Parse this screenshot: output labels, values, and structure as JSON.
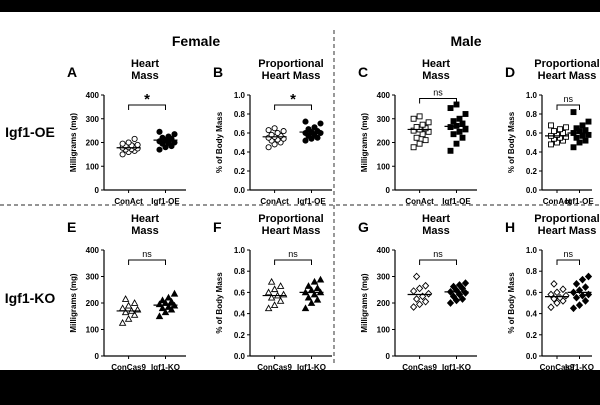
{
  "section_titles": {
    "female": "Female",
    "male": "Male"
  },
  "row_labels": {
    "oe": "Igf1-OE",
    "ko": "Igf1-KO"
  },
  "colors": {
    "background": "#ffffff",
    "frame": "#000000",
    "divider": "#555555",
    "ink": "#000000"
  },
  "chart_data": [
    {
      "type": "scatter",
      "letter": "A",
      "title": [
        "Heart",
        "Mass"
      ],
      "ylabel": "Milligrams (mg)",
      "ylim": [
        0,
        400
      ],
      "yticks": [
        0,
        100,
        200,
        300,
        400
      ],
      "categories": [
        "ConAct",
        "Igf1-OE"
      ],
      "markers": [
        "circle-open",
        "circle-filled"
      ],
      "significance": "*",
      "series": [
        {
          "values": [
            150,
            160,
            165,
            170,
            172,
            175,
            178,
            180,
            182,
            185,
            188,
            190,
            195,
            200,
            215
          ]
        },
        {
          "values": [
            170,
            180,
            185,
            195,
            198,
            200,
            205,
            210,
            215,
            220,
            225,
            235,
            245
          ]
        }
      ],
      "means": [
        178,
        210
      ]
    },
    {
      "type": "scatter",
      "letter": "B",
      "title": [
        "Proportional",
        "Heart Mass"
      ],
      "ylabel": "% of Body Mass",
      "ylim": [
        0,
        1.0
      ],
      "yticks": [
        0.0,
        0.2,
        0.4,
        0.6,
        0.8,
        1.0
      ],
      "categories": [
        "ConAct",
        "Igf1-OE"
      ],
      "markers": [
        "circle-open",
        "circle-filled"
      ],
      "significance": "*",
      "series": [
        {
          "values": [
            0.45,
            0.48,
            0.5,
            0.52,
            0.53,
            0.54,
            0.55,
            0.56,
            0.57,
            0.58,
            0.6,
            0.62,
            0.63,
            0.65
          ]
        },
        {
          "values": [
            0.52,
            0.54,
            0.55,
            0.57,
            0.58,
            0.6,
            0.6,
            0.61,
            0.62,
            0.64,
            0.66,
            0.7,
            0.72
          ]
        }
      ],
      "means": [
        0.56,
        0.61
      ]
    },
    {
      "type": "scatter",
      "letter": "C",
      "title": [
        "Heart",
        "Mass"
      ],
      "ylabel": "Milligrams (mg)",
      "ylim": [
        0,
        400
      ],
      "yticks": [
        0,
        100,
        200,
        300,
        400
      ],
      "categories": [
        "ConAct",
        "Igf1-OE"
      ],
      "markers": [
        "square-open",
        "square-filled"
      ],
      "significance": "ns",
      "series": [
        {
          "values": [
            180,
            195,
            210,
            220,
            235,
            245,
            250,
            255,
            260,
            265,
            275,
            285,
            300,
            310
          ]
        },
        {
          "values": [
            165,
            195,
            220,
            235,
            245,
            255,
            265,
            270,
            280,
            290,
            300,
            320,
            345,
            360
          ]
        }
      ],
      "means": [
        255,
        268
      ]
    },
    {
      "type": "scatter",
      "letter": "D",
      "title": [
        "Proportional",
        "Heart Mass"
      ],
      "ylabel": "% of Body Mass",
      "ylim": [
        0,
        1.0
      ],
      "yticks": [
        0.0,
        0.2,
        0.4,
        0.6,
        0.8,
        1.0
      ],
      "categories": [
        "ConAct",
        "Igf1-OE"
      ],
      "markers": [
        "square-open",
        "square-filled"
      ],
      "significance": "ns",
      "series": [
        {
          "values": [
            0.48,
            0.5,
            0.52,
            0.54,
            0.55,
            0.56,
            0.57,
            0.58,
            0.6,
            0.62,
            0.64,
            0.66,
            0.68
          ]
        },
        {
          "values": [
            0.45,
            0.5,
            0.52,
            0.55,
            0.57,
            0.58,
            0.6,
            0.62,
            0.63,
            0.65,
            0.68,
            0.72,
            0.82
          ]
        }
      ],
      "means": [
        0.57,
        0.6
      ]
    },
    {
      "type": "scatter",
      "letter": "E",
      "title": [
        "Heart",
        "Mass"
      ],
      "ylabel": "Milligrams (mg)",
      "ylim": [
        0,
        400
      ],
      "yticks": [
        0,
        100,
        200,
        300,
        400
      ],
      "categories": [
        "ConCas9",
        "Igf1-KO"
      ],
      "markers": [
        "triangle-open",
        "triangle-filled"
      ],
      "significance": "ns",
      "series": [
        {
          "values": [
            125,
            140,
            155,
            165,
            170,
            175,
            180,
            190,
            200,
            215
          ]
        },
        {
          "values": [
            150,
            165,
            175,
            180,
            185,
            190,
            195,
            200,
            205,
            210,
            220,
            235
          ]
        }
      ],
      "means": [
        170,
        192
      ]
    },
    {
      "type": "scatter",
      "letter": "F",
      "title": [
        "Proportional",
        "Heart Mass"
      ],
      "ylabel": "% of Body Mass",
      "ylim": [
        0,
        1.0
      ],
      "yticks": [
        0.0,
        0.2,
        0.4,
        0.6,
        0.8,
        1.0
      ],
      "categories": [
        "ConCas9",
        "Igf1-KO"
      ],
      "markers": [
        "triangle-open",
        "triangle-filled"
      ],
      "significance": "ns",
      "series": [
        {
          "values": [
            0.45,
            0.48,
            0.52,
            0.55,
            0.57,
            0.58,
            0.6,
            0.63,
            0.66,
            0.7
          ]
        },
        {
          "values": [
            0.45,
            0.5,
            0.53,
            0.55,
            0.58,
            0.6,
            0.6,
            0.62,
            0.64,
            0.66,
            0.7,
            0.72
          ]
        }
      ],
      "means": [
        0.57,
        0.6
      ]
    },
    {
      "type": "scatter",
      "letter": "G",
      "title": [
        "Heart",
        "Mass"
      ],
      "ylabel": "Milligrams (mg)",
      "ylim": [
        0,
        400
      ],
      "yticks": [
        0,
        100,
        200,
        300,
        400
      ],
      "categories": [
        "ConCas9",
        "Igf1-KO"
      ],
      "markers": [
        "diamond-open",
        "diamond-filled"
      ],
      "significance": "ns",
      "series": [
        {
          "values": [
            185,
            195,
            205,
            215,
            225,
            235,
            245,
            255,
            265,
            300
          ]
        },
        {
          "values": [
            200,
            210,
            215,
            225,
            232,
            238,
            242,
            248,
            255,
            262,
            268,
            275
          ]
        }
      ],
      "means": [
        232,
        242
      ]
    },
    {
      "type": "scatter",
      "letter": "H",
      "title": [
        "Proportional",
        "Heart Mass"
      ],
      "ylabel": "% of Body Mass",
      "ylim": [
        0,
        1.0
      ],
      "yticks": [
        0.0,
        0.2,
        0.4,
        0.6,
        0.8,
        1.0
      ],
      "categories": [
        "ConCas9",
        "Igf1-KO"
      ],
      "markers": [
        "diamond-open",
        "diamond-filled"
      ],
      "significance": "ns",
      "series": [
        {
          "values": [
            0.46,
            0.5,
            0.52,
            0.54,
            0.55,
            0.57,
            0.58,
            0.6,
            0.63,
            0.68
          ]
        },
        {
          "values": [
            0.45,
            0.48,
            0.52,
            0.55,
            0.57,
            0.58,
            0.6,
            0.62,
            0.65,
            0.68,
            0.72,
            0.75
          ]
        }
      ],
      "means": [
        0.56,
        0.6
      ]
    }
  ]
}
